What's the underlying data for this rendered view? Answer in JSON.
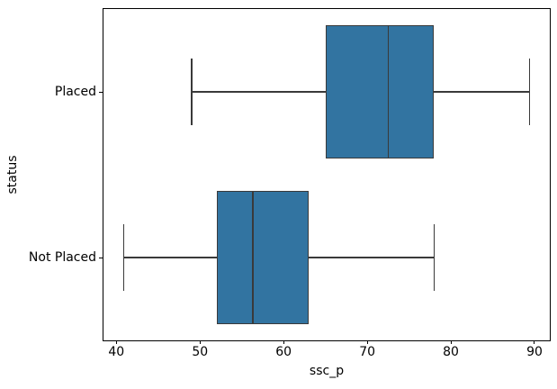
{
  "chart_data": {
    "type": "boxplot",
    "orientation": "horizontal",
    "title": "",
    "xlabel": "ssc_p",
    "ylabel": "status",
    "categories": [
      "Placed",
      "Not Placed"
    ],
    "xticks": [
      40,
      50,
      60,
      70,
      80,
      90
    ],
    "xlim": [
      38.46,
      91.83
    ],
    "grid": false,
    "series": [
      {
        "name": "Placed",
        "whisker_low": 49.0,
        "q1": 65.0,
        "median": 72.5,
        "q3": 78.0,
        "whisker_high": 89.4
      },
      {
        "name": "Not Placed",
        "whisker_low": 40.89,
        "q1": 52.0,
        "median": 56.3,
        "q3": 63.0,
        "whisker_high": 78.0
      }
    ],
    "colors": {
      "box_fill": "#3274a1",
      "line": "#3a3a3a",
      "spine": "#000000",
      "text": "#000000",
      "background": "#ffffff"
    }
  }
}
